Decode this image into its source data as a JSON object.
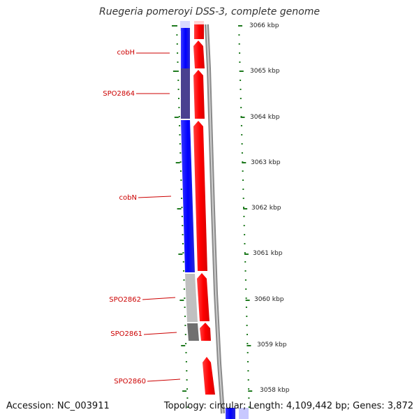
{
  "header": {
    "title": "Ruegeria pomeroyi DSS-3, complete genome"
  },
  "footer": {
    "accession": "Accession: NC_003911",
    "summary": "Topology: circular; Length: 4,109,442 bp; Genes: 3,872"
  },
  "kbp_ticks": [
    "3066 kbp",
    "3065 kbp",
    "3064 kbp",
    "3063 kbp",
    "3062 kbp",
    "3061 kbp",
    "3060 kbp",
    "3059 kbp",
    "3058 kbp"
  ],
  "genes": [
    {
      "name": "cobH"
    },
    {
      "name": "SPO2864"
    },
    {
      "name": "cobN"
    },
    {
      "name": "SPO2862"
    },
    {
      "name": "SPO2861"
    },
    {
      "name": "SPO2860"
    }
  ],
  "colors": {
    "forward_gene": "#ff0000",
    "reverse_gene": "#0000ff",
    "label": "#cc0000",
    "tick": "#1f7a1f",
    "backbone": "#888888"
  }
}
